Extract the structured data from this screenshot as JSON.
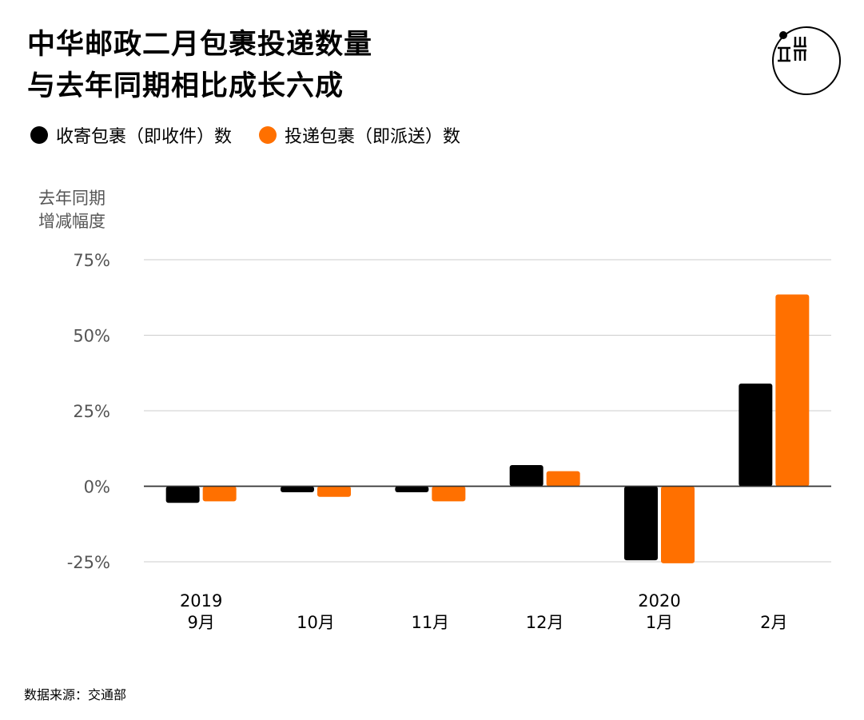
{
  "title_line1": "中华邮政二月包裹投递数量",
  "title_line2": "与去年同期相比成长六成",
  "source": "数据来源：交通部",
  "chart_data": {
    "type": "bar",
    "title": "中华邮政二月包裹投递数量与去年同期相比成长六成",
    "ylabel": "去年同期\n增减幅度",
    "ylim": [
      -25,
      75
    ],
    "yticks": [
      75,
      50,
      25,
      0,
      -25
    ],
    "ytick_labels": [
      "75%",
      "50%",
      "25%",
      "0%",
      "-25%"
    ],
    "grid": true,
    "legend_position": "top-left",
    "categories": [
      "9月",
      "10月",
      "11月",
      "12月",
      "1月",
      "2月"
    ],
    "year_labels": [
      "2019",
      "",
      "",
      "",
      "2020",
      ""
    ],
    "series": [
      {
        "name": "收寄包裹（即收件）数",
        "color": "#000000",
        "values": [
          -5.5,
          -2,
          -2,
          7,
          -24.5,
          34
        ]
      },
      {
        "name": "投递包裹（即派送）数",
        "color": "#ff7000",
        "values": [
          -5,
          -3.5,
          -5,
          5,
          -25.5,
          63.5
        ]
      }
    ]
  }
}
